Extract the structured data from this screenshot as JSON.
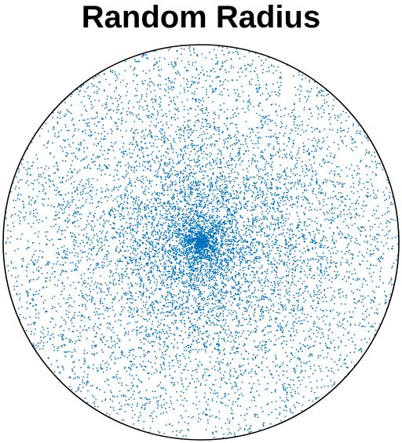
{
  "chart_data": {
    "type": "scatter",
    "title": "Random Radius",
    "xlabel": "",
    "ylabel": "",
    "distribution": "uniform-radius",
    "center": [
      0,
      0
    ],
    "radius": 1,
    "xlim": [
      -1,
      1
    ],
    "ylim": [
      -1,
      1
    ],
    "n_points": 10000,
    "point_color": "#0072BD",
    "boundary_color": "#000000",
    "axes_visible": false,
    "grid": false,
    "legend": "none"
  }
}
